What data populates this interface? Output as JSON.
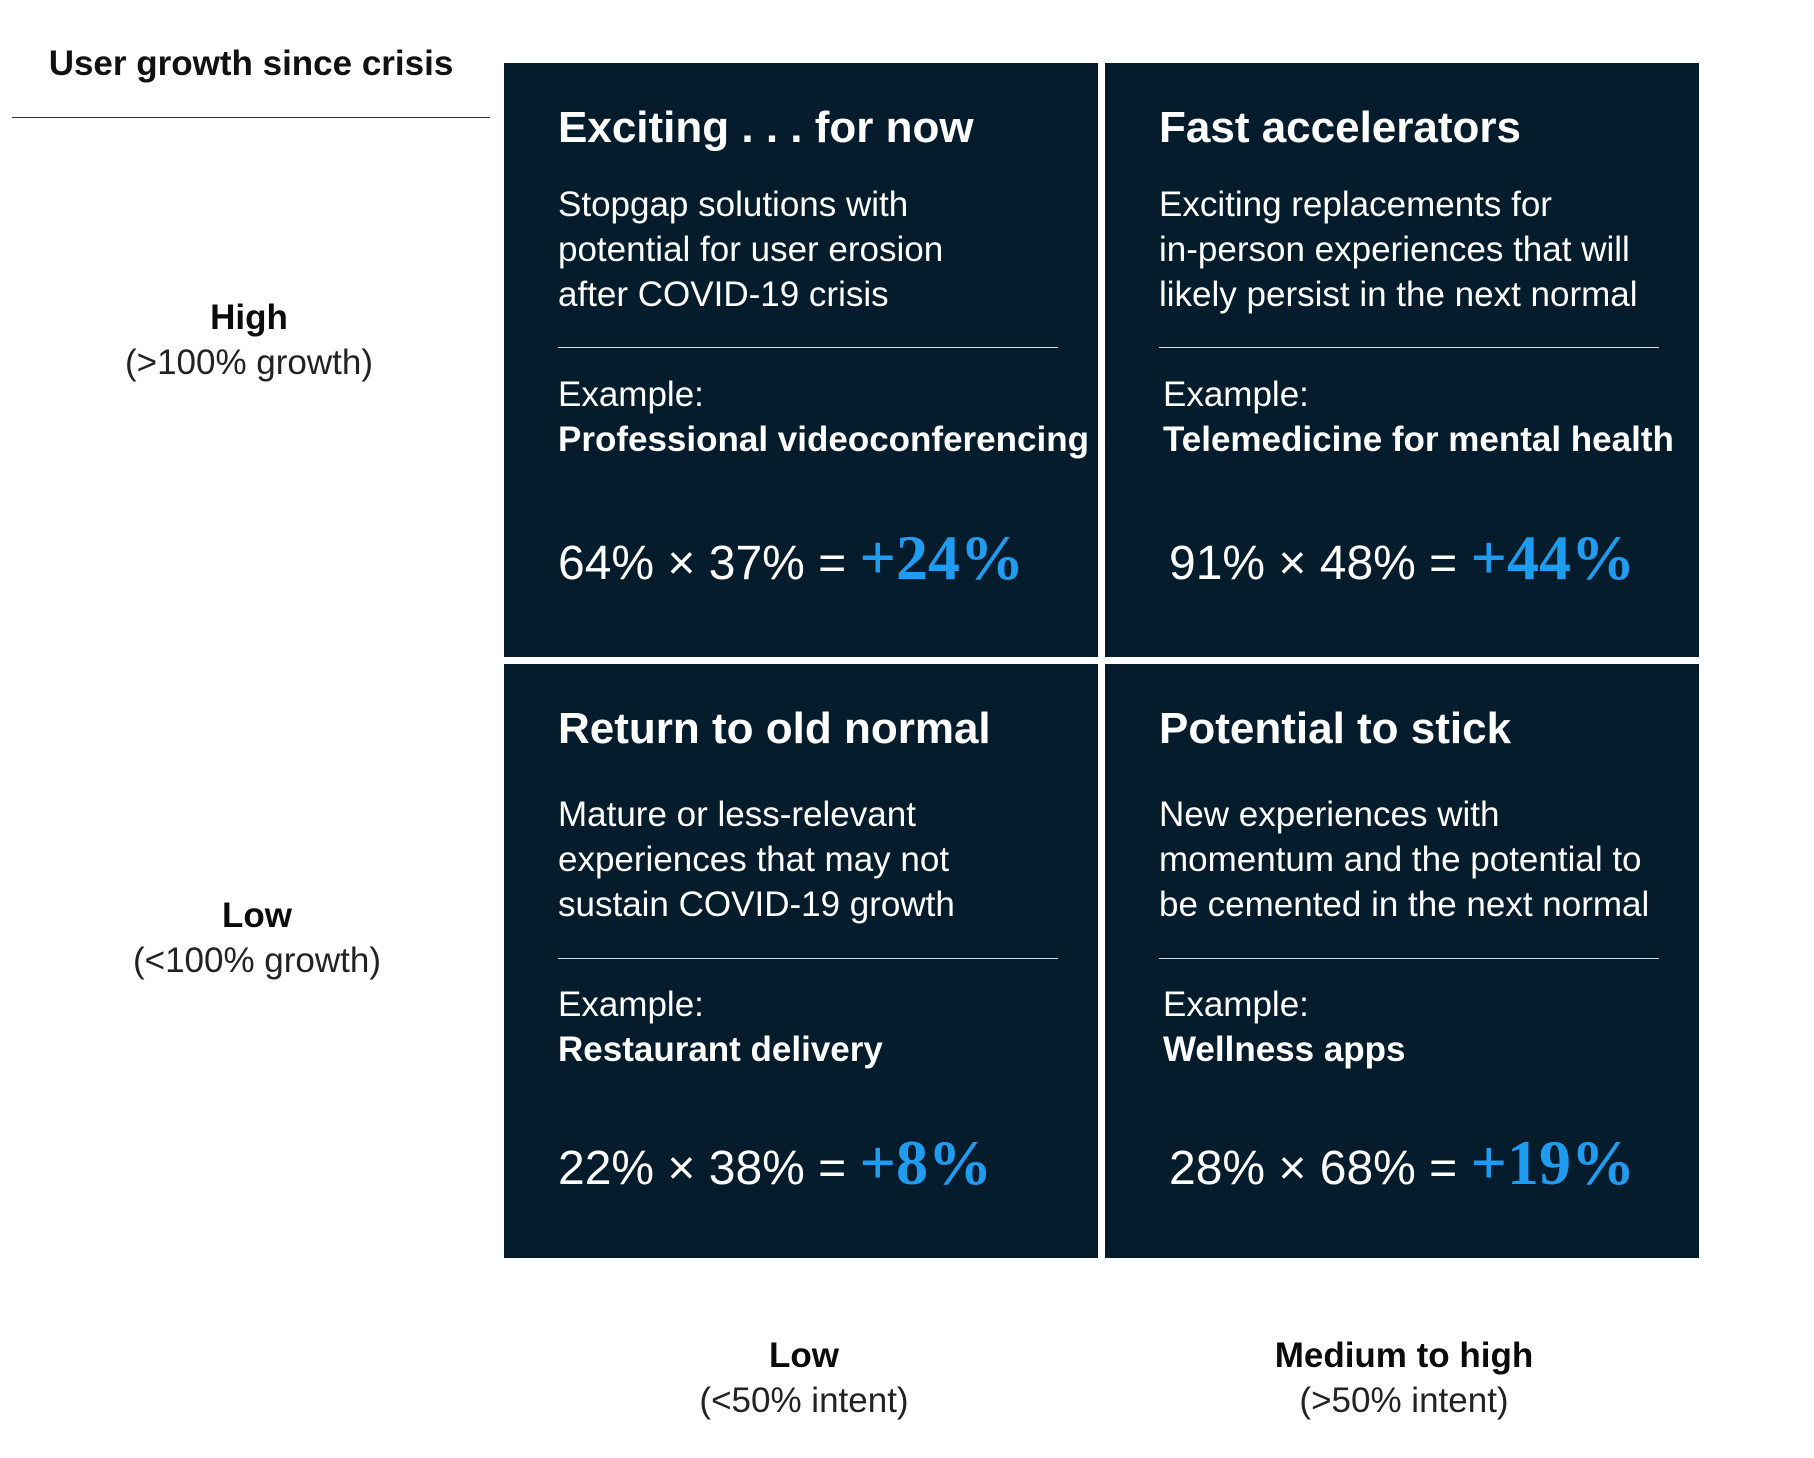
{
  "y_axis": {
    "title": "User growth since crisis",
    "high": {
      "level": "High",
      "range": "(>100% growth)"
    },
    "low": {
      "level": "Low",
      "range": "(<100% growth)"
    }
  },
  "x_axis": {
    "low": {
      "level": "Low",
      "range": "(<50% intent)"
    },
    "high": {
      "level": "Medium to high",
      "range": "(>50% intent)"
    }
  },
  "quadrants": {
    "top_left": {
      "title": "Exciting . . . for now",
      "desc": [
        "Stopgap solutions with",
        "potential for user erosion",
        "after COVID-19 crisis"
      ],
      "example_label": "Example:",
      "example": "Professional videoconferencing",
      "formula": "64% × 37% = ",
      "result": "+24%"
    },
    "top_right": {
      "title": "Fast accelerators",
      "desc": [
        "Exciting replacements for",
        "in-person experiences that will",
        "likely persist in the next normal"
      ],
      "example_label": "Example:",
      "example": "Telemedicine for mental health",
      "formula": "91% × 48% = ",
      "result": "+44%"
    },
    "bottom_left": {
      "title": "Return to old normal",
      "desc": [
        "Mature or less-relevant",
        "experiences that may not",
        "sustain COVID-19 growth"
      ],
      "example_label": "Example:",
      "example": "Restaurant delivery",
      "formula": "22% × 38% = ",
      "result": "+8%"
    },
    "bottom_right": {
      "title": "Potential to stick",
      "desc": [
        "New experiences with",
        "momentum and the potential to",
        "be cemented in the next normal"
      ],
      "example_label": "Example:",
      "example": "Wellness apps",
      "formula": "28% × 68% = ",
      "result": "+19%"
    }
  },
  "colors": {
    "quadrant_bg": "#051c2c",
    "result_accent": "#1f9cf0"
  }
}
